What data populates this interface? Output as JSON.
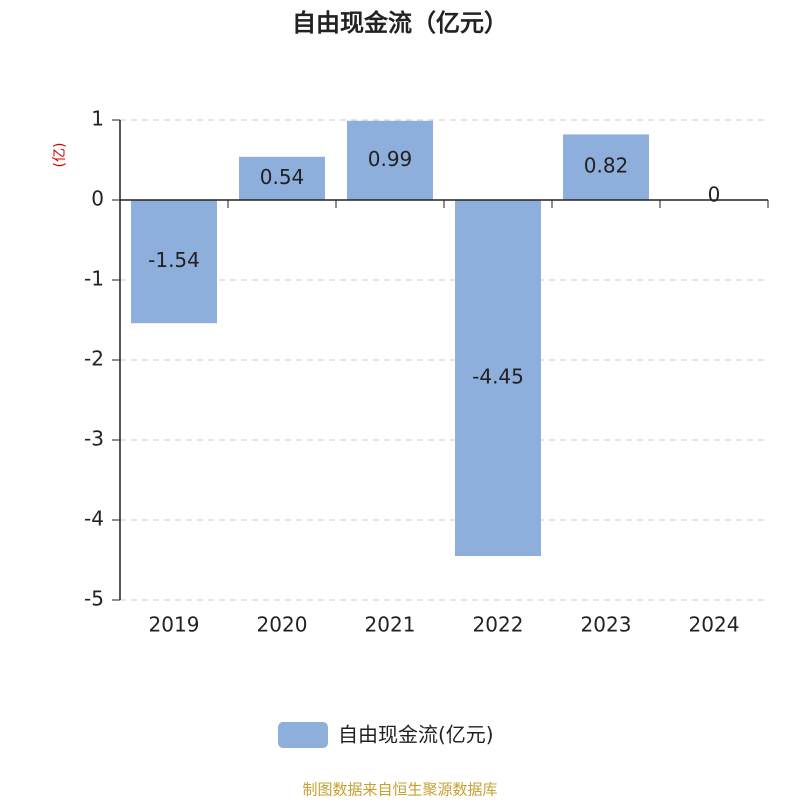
{
  "chart_data": {
    "type": "bar",
    "title": "自由现金流（亿元）",
    "y_label": "(亿)",
    "categories": [
      "2019",
      "2020",
      "2021",
      "2022",
      "2023",
      "2024"
    ],
    "series": [
      {
        "name": "自由现金流(亿元)",
        "color": "#8eaedb",
        "values": [
          -1.54,
          0.54,
          0.99,
          -4.45,
          0.82,
          0
        ]
      }
    ],
    "ylim": [
      -5,
      1
    ],
    "yticks": [
      -5,
      -4,
      -3,
      -2,
      -1,
      0,
      1
    ],
    "grid": true,
    "legend": "bottom",
    "footer": "制图数据来自恒生聚源数据库"
  }
}
